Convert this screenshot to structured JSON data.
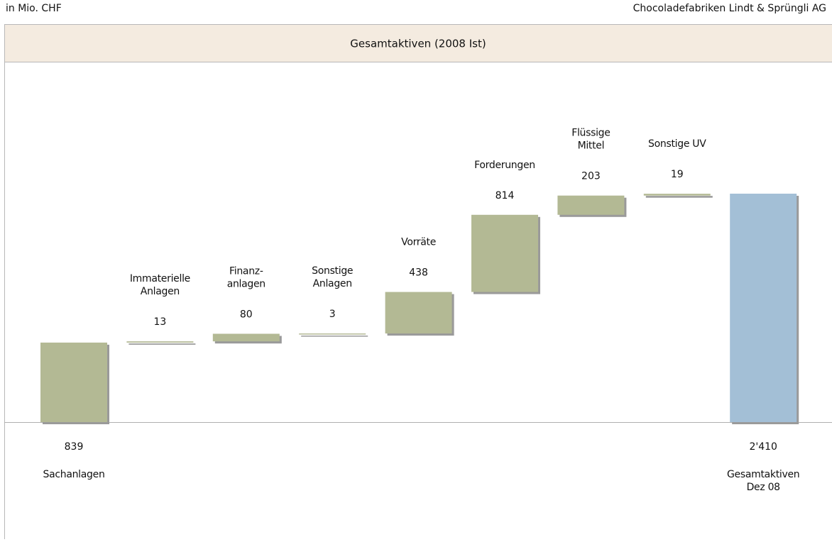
{
  "header": {
    "left": "in Mio. CHF",
    "right": "Chocoladefabriken Lindt & Sprüngli AG"
  },
  "chart_data": {
    "type": "waterfall",
    "title": "Gesamtaktiven (2008 Ist)",
    "categories": [
      [
        "Sachanlagen"
      ],
      [
        "Immaterielle",
        "Anlagen"
      ],
      [
        "Finanz-",
        "anlagen"
      ],
      [
        "Sonstige",
        "Anlagen"
      ],
      [
        "Vorräte"
      ],
      [
        "Forderungen"
      ],
      [
        "Flüssige",
        "Mittel"
      ],
      [
        "Sonstige UV"
      ],
      [
        "Gesamtaktiven",
        "Dez 08"
      ]
    ],
    "values": [
      839,
      13,
      80,
      3,
      438,
      814,
      203,
      19,
      2410
    ],
    "value_labels": [
      "839",
      "13",
      "80",
      "3",
      "438",
      "814",
      "203",
      "19",
      "2'410"
    ],
    "measure": [
      "relative",
      "relative",
      "relative",
      "relative",
      "relative",
      "relative",
      "relative",
      "relative",
      "total"
    ],
    "color": "#b3b994",
    "total_color": "#a3bfd6"
  }
}
